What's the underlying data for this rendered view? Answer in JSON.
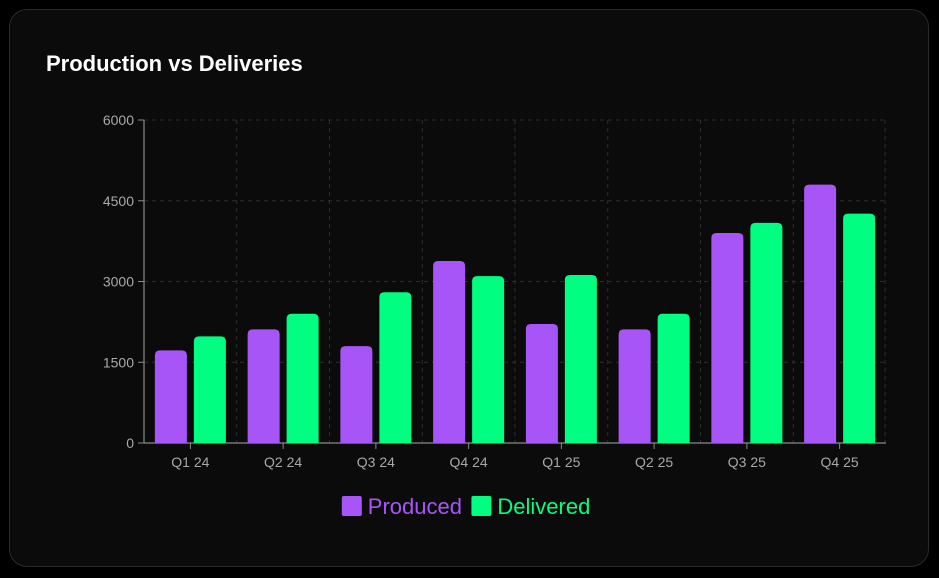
{
  "card": {
    "title": "Production vs Deliveries"
  },
  "chart_data": {
    "type": "bar",
    "title": "Production vs Deliveries",
    "xlabel": "",
    "ylabel": "",
    "categories": [
      "Q1 24",
      "Q2 24",
      "Q3 24",
      "Q4 24",
      "Q1 25",
      "Q2 25",
      "Q3 25",
      "Q4 25"
    ],
    "series": [
      {
        "name": "Produced",
        "color": "#a855f7",
        "values": [
          1720,
          2110,
          1800,
          3380,
          2210,
          2110,
          3900,
          4800
        ]
      },
      {
        "name": "Delivered",
        "color": "#00ff80",
        "values": [
          1980,
          2400,
          2800,
          3100,
          3120,
          2400,
          4090,
          4260
        ]
      }
    ],
    "ylim": [
      0,
      6000
    ],
    "yticks": [
      "0",
      "1500",
      "3000",
      "4500",
      "6000"
    ],
    "grid": true,
    "legend": "bottom-center"
  }
}
